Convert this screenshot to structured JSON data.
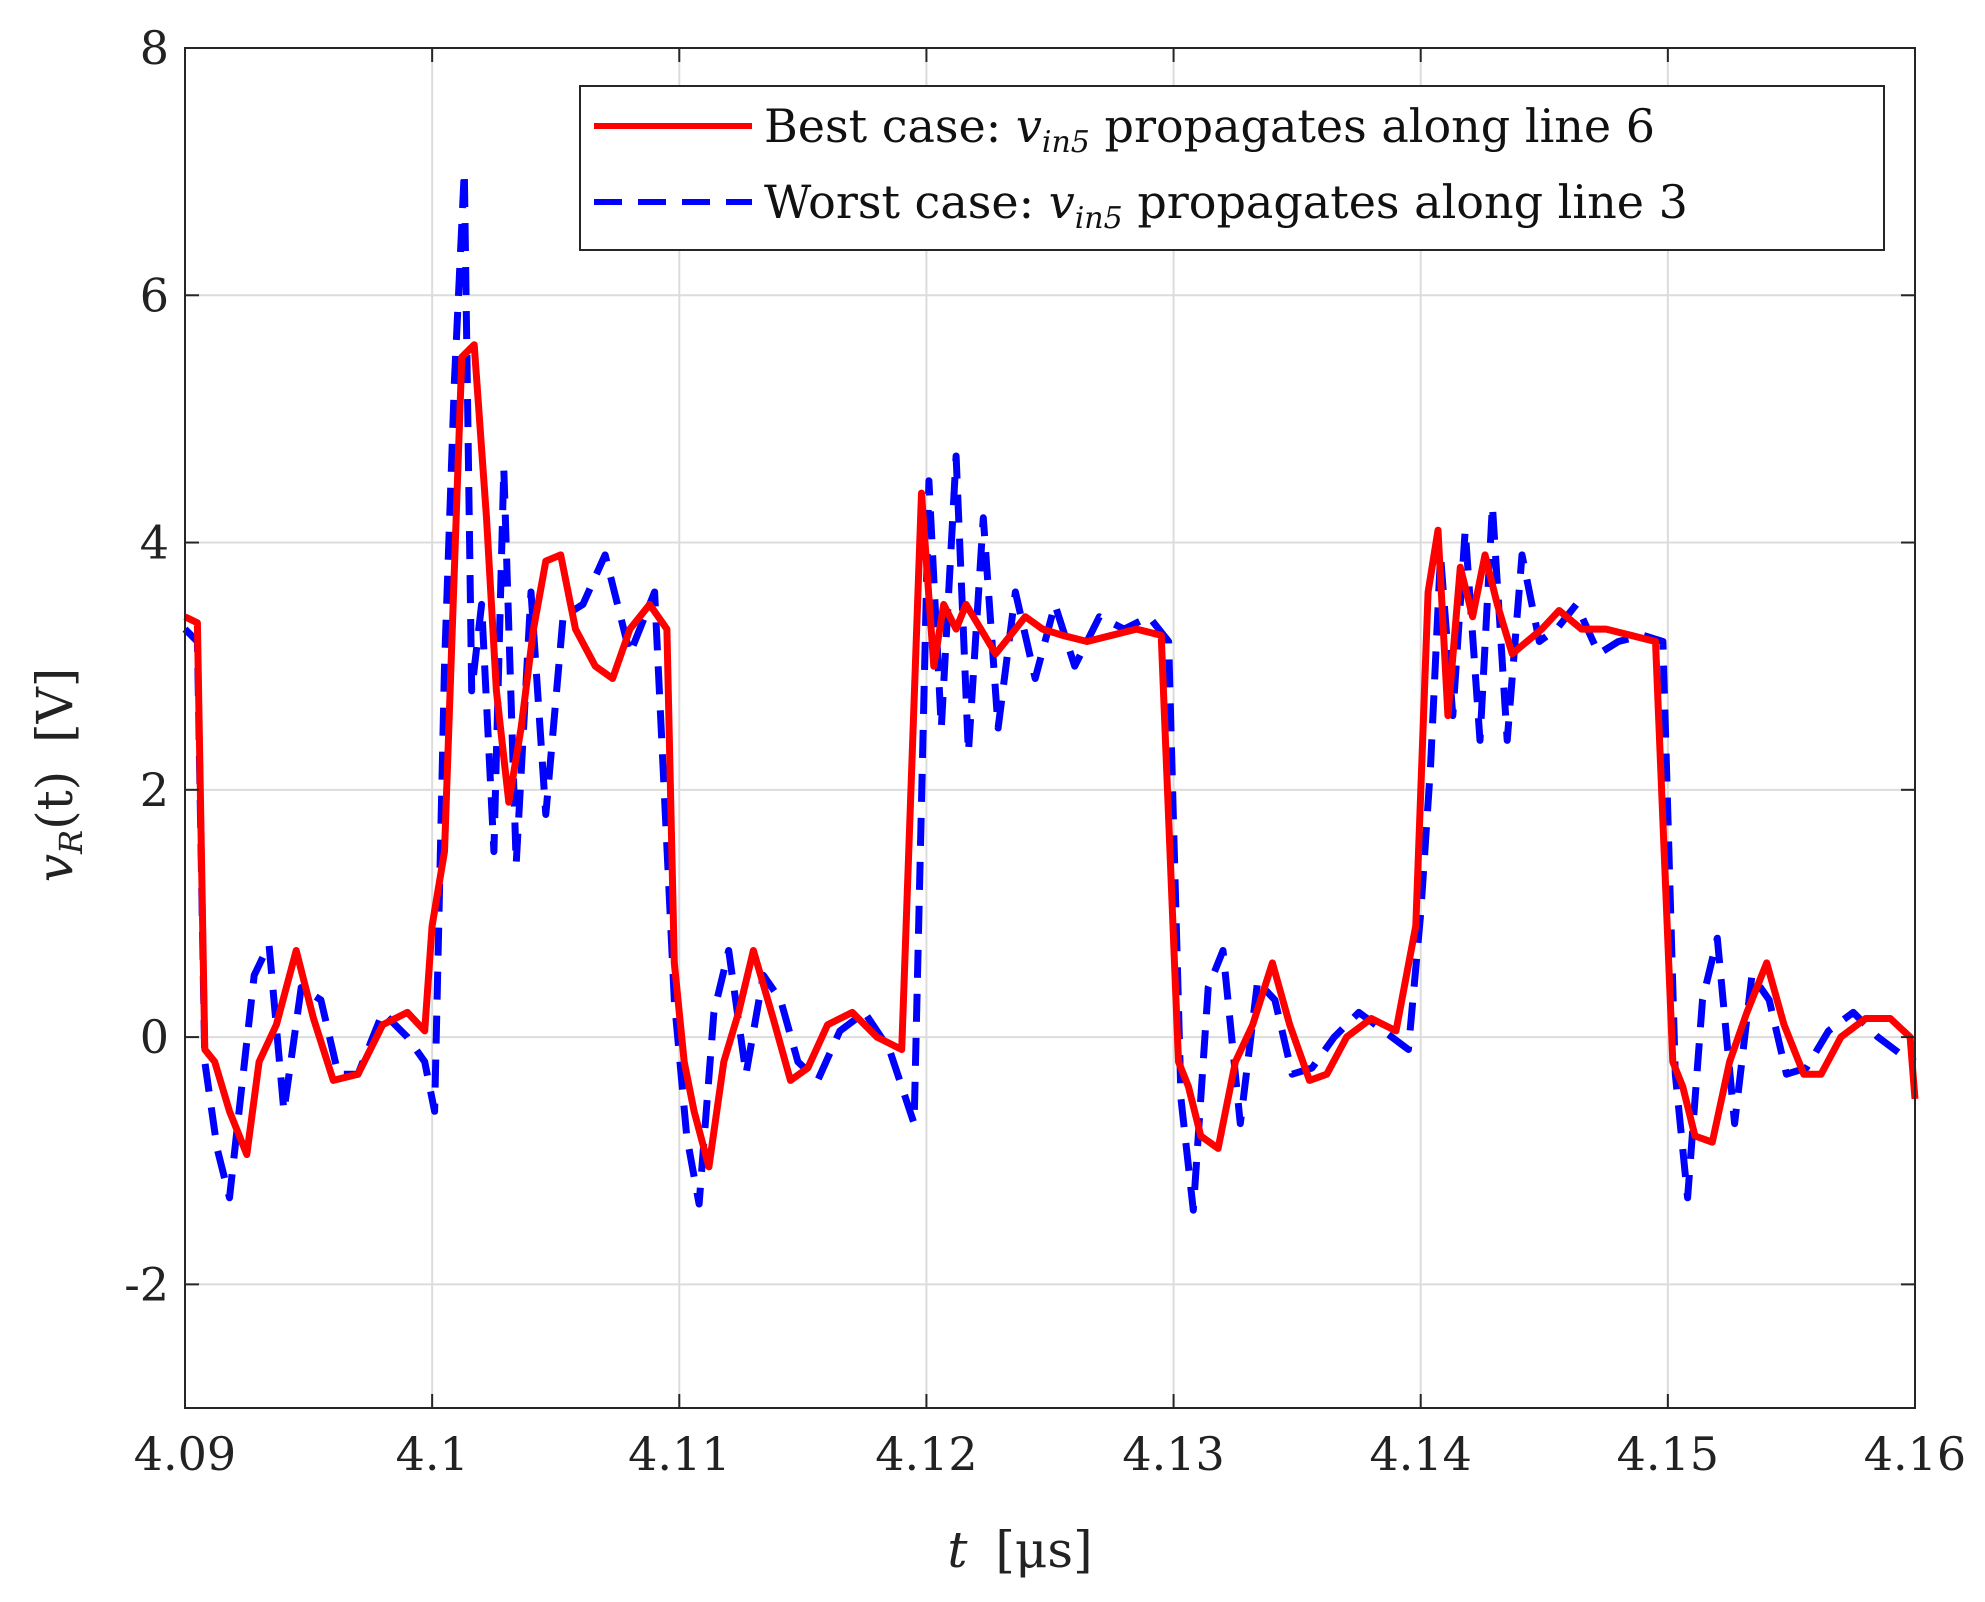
{
  "chart_data": {
    "type": "line",
    "title": "",
    "xlabel": "t [μs]",
    "ylabel": "v_R(t) [V]",
    "ylabel_parts": {
      "var": "v",
      "sub": "R",
      "arg": "(t)",
      "unit": "[V]"
    },
    "xlabel_parts": {
      "var": "t",
      "unit": "[μs]"
    },
    "xlim": [
      4.09,
      4.16
    ],
    "ylim": [
      -3,
      8
    ],
    "xticks": [
      4.09,
      4.1,
      4.11,
      4.12,
      4.13,
      4.14,
      4.15,
      4.16
    ],
    "xtick_labels": [
      "4.09",
      "4.1",
      "4.11",
      "4.12",
      "4.13",
      "4.14",
      "4.15",
      "4.16"
    ],
    "yticks": [
      -2,
      0,
      2,
      4,
      6,
      8
    ],
    "ytick_labels": [
      "-2",
      "0",
      "2",
      "4",
      "6",
      "8"
    ],
    "grid": true,
    "legend_position": "top-right",
    "legend_var": {
      "v": "v",
      "sub": "in5"
    },
    "series": [
      {
        "name": "Best case: v_in5 propagates along line 6",
        "label_before": "Best case: ",
        "label_after": " propagates along line 6",
        "color": "#ff0000",
        "style": "solid",
        "x": [
          4.09,
          4.0905,
          4.0908,
          4.0912,
          4.0918,
          4.0925,
          4.093,
          4.0937,
          4.0945,
          4.0952,
          4.096,
          4.097,
          4.098,
          4.099,
          4.0997,
          4.1,
          4.1005,
          4.1012,
          4.1017,
          4.1022,
          4.1026,
          4.1031,
          4.1036,
          4.1041,
          4.1046,
          4.1052,
          4.1058,
          4.1066,
          4.1073,
          4.108,
          4.1088,
          4.1095,
          4.1098,
          4.1102,
          4.1106,
          4.1112,
          4.1118,
          4.1124,
          4.113,
          4.1138,
          4.1145,
          4.1152,
          4.116,
          4.117,
          4.118,
          4.119,
          4.1198,
          4.1203,
          4.1207,
          4.1212,
          4.1216,
          4.1222,
          4.1228,
          4.1234,
          4.124,
          4.1247,
          4.1255,
          4.1265,
          4.1275,
          4.1285,
          4.1295,
          4.1302,
          4.1306,
          4.1311,
          4.1318,
          4.1325,
          4.1332,
          4.134,
          4.1347,
          4.1355,
          4.1362,
          4.137,
          4.138,
          4.139,
          4.1398,
          4.1403,
          4.1407,
          4.1411,
          4.1416,
          4.1421,
          4.1426,
          4.1431,
          4.1437,
          4.1443,
          4.1449,
          4.1456,
          4.1465,
          4.1475,
          4.1485,
          4.1495,
          4.1502,
          4.1506,
          4.1511,
          4.1518,
          4.1525,
          4.1532,
          4.154,
          4.1547,
          4.1555,
          4.1562,
          4.157,
          4.158,
          4.159,
          4.1598,
          4.16
        ],
        "y": [
          3.4,
          3.35,
          -0.1,
          -0.2,
          -0.6,
          -0.95,
          -0.2,
          0.1,
          0.7,
          0.15,
          -0.35,
          -0.3,
          0.1,
          0.2,
          0.05,
          0.9,
          1.5,
          5.5,
          5.6,
          4.2,
          2.8,
          1.9,
          2.5,
          3.3,
          3.85,
          3.9,
          3.3,
          3.0,
          2.9,
          3.3,
          3.5,
          3.3,
          0.6,
          -0.2,
          -0.6,
          -1.05,
          -0.2,
          0.2,
          0.7,
          0.15,
          -0.35,
          -0.25,
          0.1,
          0.2,
          0.0,
          -0.1,
          4.4,
          3.0,
          3.5,
          3.3,
          3.5,
          3.3,
          3.1,
          3.25,
          3.4,
          3.3,
          3.25,
          3.2,
          3.25,
          3.3,
          3.25,
          -0.2,
          -0.4,
          -0.8,
          -0.9,
          -0.2,
          0.1,
          0.6,
          0.1,
          -0.35,
          -0.3,
          0.0,
          0.15,
          0.05,
          0.9,
          3.6,
          4.1,
          2.6,
          3.8,
          3.4,
          3.9,
          3.5,
          3.1,
          3.2,
          3.3,
          3.45,
          3.3,
          3.3,
          3.25,
          3.2,
          -0.2,
          -0.4,
          -0.8,
          -0.85,
          -0.2,
          0.2,
          0.6,
          0.1,
          -0.3,
          -0.3,
          0.0,
          0.15,
          0.15,
          0.0,
          -0.5
        ]
      },
      {
        "name": "Worst case: v_in5 propagates along line 3",
        "label_before": "Worst case: ",
        "label_after": " propagates along line 3",
        "color": "#0000ff",
        "style": "dashed",
        "x": [
          4.09,
          4.0905,
          4.0908,
          4.0913,
          4.0918,
          4.0923,
          4.0928,
          4.0934,
          4.094,
          4.0947,
          4.0955,
          4.0962,
          4.097,
          4.098,
          4.099,
          4.0997,
          4.1001,
          4.1005,
          4.1009,
          4.1013,
          4.1016,
          4.102,
          4.1025,
          4.1029,
          4.1034,
          4.104,
          4.1046,
          4.1053,
          4.1061,
          4.107,
          4.108,
          4.109,
          4.1098,
          4.1103,
          4.1108,
          4.1114,
          4.112,
          4.1127,
          4.1134,
          4.1141,
          4.1148,
          4.1156,
          4.1165,
          4.1175,
          4.1185,
          4.1195,
          4.1201,
          4.1206,
          4.1212,
          4.1217,
          4.1223,
          4.1229,
          4.1236,
          4.1244,
          4.1252,
          4.126,
          4.127,
          4.128,
          4.129,
          4.1298,
          4.1303,
          4.1308,
          4.1314,
          4.132,
          4.1327,
          4.1334,
          4.1341,
          4.1348,
          4.1356,
          4.1365,
          4.1375,
          4.1385,
          4.1395,
          4.14,
          4.1404,
          4.1408,
          4.1413,
          4.1418,
          4.1424,
          4.1429,
          4.1435,
          4.1441,
          4.1448,
          4.1455,
          4.1463,
          4.1472,
          4.148,
          4.149,
          4.1498,
          4.1503,
          4.1508,
          4.1514,
          4.152,
          4.1527,
          4.1534,
          4.1541,
          4.1548,
          4.1556,
          4.1565,
          4.1575,
          4.1585,
          4.1595,
          4.16
        ],
        "y": [
          3.3,
          3.2,
          -0.2,
          -0.9,
          -1.3,
          -0.4,
          0.5,
          0.75,
          -0.6,
          0.4,
          0.3,
          -0.3,
          -0.3,
          0.2,
          0.0,
          -0.2,
          -0.6,
          3.0,
          5.3,
          7.0,
          2.8,
          3.5,
          1.5,
          4.6,
          1.4,
          3.6,
          1.8,
          3.4,
          3.5,
          3.9,
          3.1,
          3.6,
          0.3,
          -0.8,
          -1.35,
          0.2,
          0.7,
          -0.3,
          0.5,
          0.3,
          -0.2,
          -0.35,
          0.05,
          0.2,
          -0.1,
          -0.7,
          4.5,
          2.5,
          4.7,
          2.3,
          4.2,
          2.5,
          3.6,
          2.9,
          3.5,
          3.0,
          3.4,
          3.3,
          3.4,
          3.2,
          -0.5,
          -1.4,
          0.4,
          0.7,
          -0.7,
          0.45,
          0.3,
          -0.3,
          -0.25,
          0.0,
          0.2,
          0.05,
          -0.1,
          1.0,
          2.2,
          3.9,
          2.6,
          4.1,
          2.4,
          4.3,
          2.4,
          3.9,
          3.2,
          3.3,
          3.5,
          3.1,
          3.2,
          3.25,
          3.2,
          -0.3,
          -1.3,
          0.3,
          0.8,
          -0.7,
          0.5,
          0.3,
          -0.3,
          -0.25,
          0.05,
          0.2,
          0.0,
          -0.15,
          -0.2
        ]
      }
    ]
  }
}
